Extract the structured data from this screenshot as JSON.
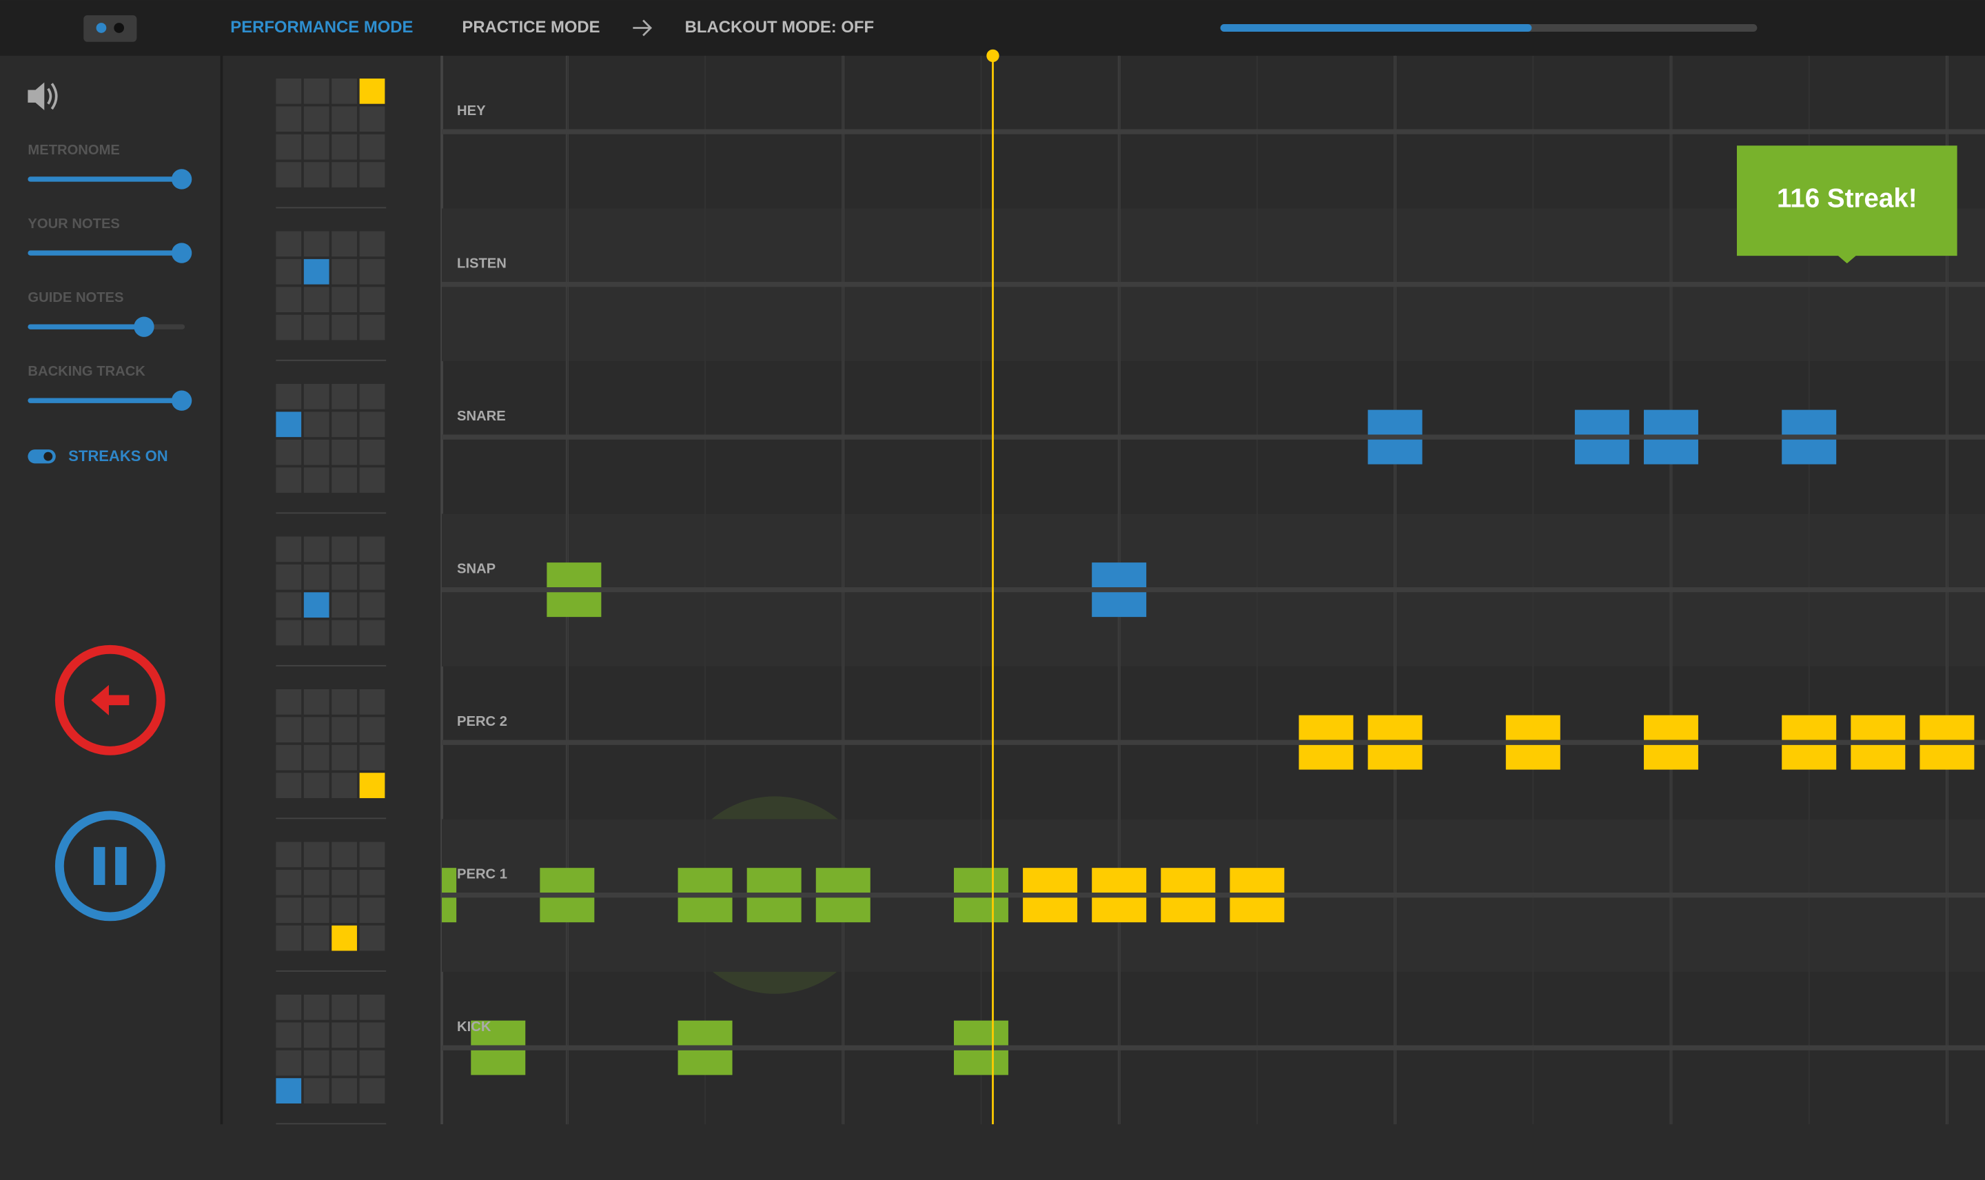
{
  "header": {
    "nav": [
      "PERFORMANCE MODE",
      "PRACTICE MODE",
      "BLACKOUT MODE:  OFF"
    ],
    "progress": 58
  },
  "sidebar": {
    "sliders": [
      {
        "label": "METRONOME",
        "value": 98
      },
      {
        "label": "YOUR NOTES",
        "value": 98
      },
      {
        "label": "GUIDE NOTES",
        "value": 74
      },
      {
        "label": "BACKING TRACK",
        "value": 98
      }
    ],
    "toggle": "STREAKS ON"
  },
  "streak": "116 Streak!",
  "playhead": 6.17,
  "tracks": [
    {
      "name": "HEY",
      "pad": [
        0,
        3,
        "#ffcc00"
      ],
      "notes": []
    },
    {
      "name": "LISTEN",
      "pad": [
        1,
        1,
        "#2e86c8"
      ],
      "notes": []
    },
    {
      "name": "SNARE",
      "pad": [
        1,
        0,
        "#2e86c8"
      ],
      "notes": [
        [
          12,
          "#2e86c8"
        ],
        [
          15,
          "#2e86c8"
        ],
        [
          16,
          "#2e86c8"
        ],
        [
          18,
          "#2e86c8"
        ]
      ]
    },
    {
      "name": "SNAP",
      "pad": [
        2,
        1,
        "#2e86c8"
      ],
      "notes": [
        [
          0.1,
          "#7ab02c"
        ],
        [
          8,
          "#2e86c8"
        ]
      ]
    },
    {
      "name": "PERC 2",
      "pad": [
        3,
        3,
        "#ffcc00"
      ],
      "notes": [
        [
          11,
          "#ffcc00"
        ],
        [
          12,
          "#ffcc00"
        ],
        [
          14,
          "#ffcc00"
        ],
        [
          16,
          "#ffcc00"
        ],
        [
          18,
          "#ffcc00"
        ],
        [
          19,
          "#ffcc00"
        ],
        [
          20,
          "#ffcc00"
        ]
      ]
    },
    {
      "name": "PERC 1",
      "pad": [
        3,
        2,
        "#ffcc00"
      ],
      "notes": [
        [
          -2,
          "#7ab02c"
        ],
        [
          0,
          "#7ab02c"
        ],
        [
          2,
          "#7ab02c"
        ],
        [
          3,
          "#7ab02c"
        ],
        [
          4,
          "#7ab02c"
        ],
        [
          6,
          "#7ab02c"
        ],
        [
          7,
          "#ffcc00"
        ],
        [
          8,
          "#ffcc00"
        ],
        [
          9,
          "#ffcc00"
        ],
        [
          10,
          "#ffcc00"
        ]
      ]
    },
    {
      "name": "KICK",
      "pad": [
        3,
        0,
        "#2e86c8"
      ],
      "notes": [
        [
          -1,
          "#7ab02c"
        ],
        [
          2,
          "#7ab02c"
        ],
        [
          6,
          "#7ab02c"
        ]
      ]
    }
  ]
}
